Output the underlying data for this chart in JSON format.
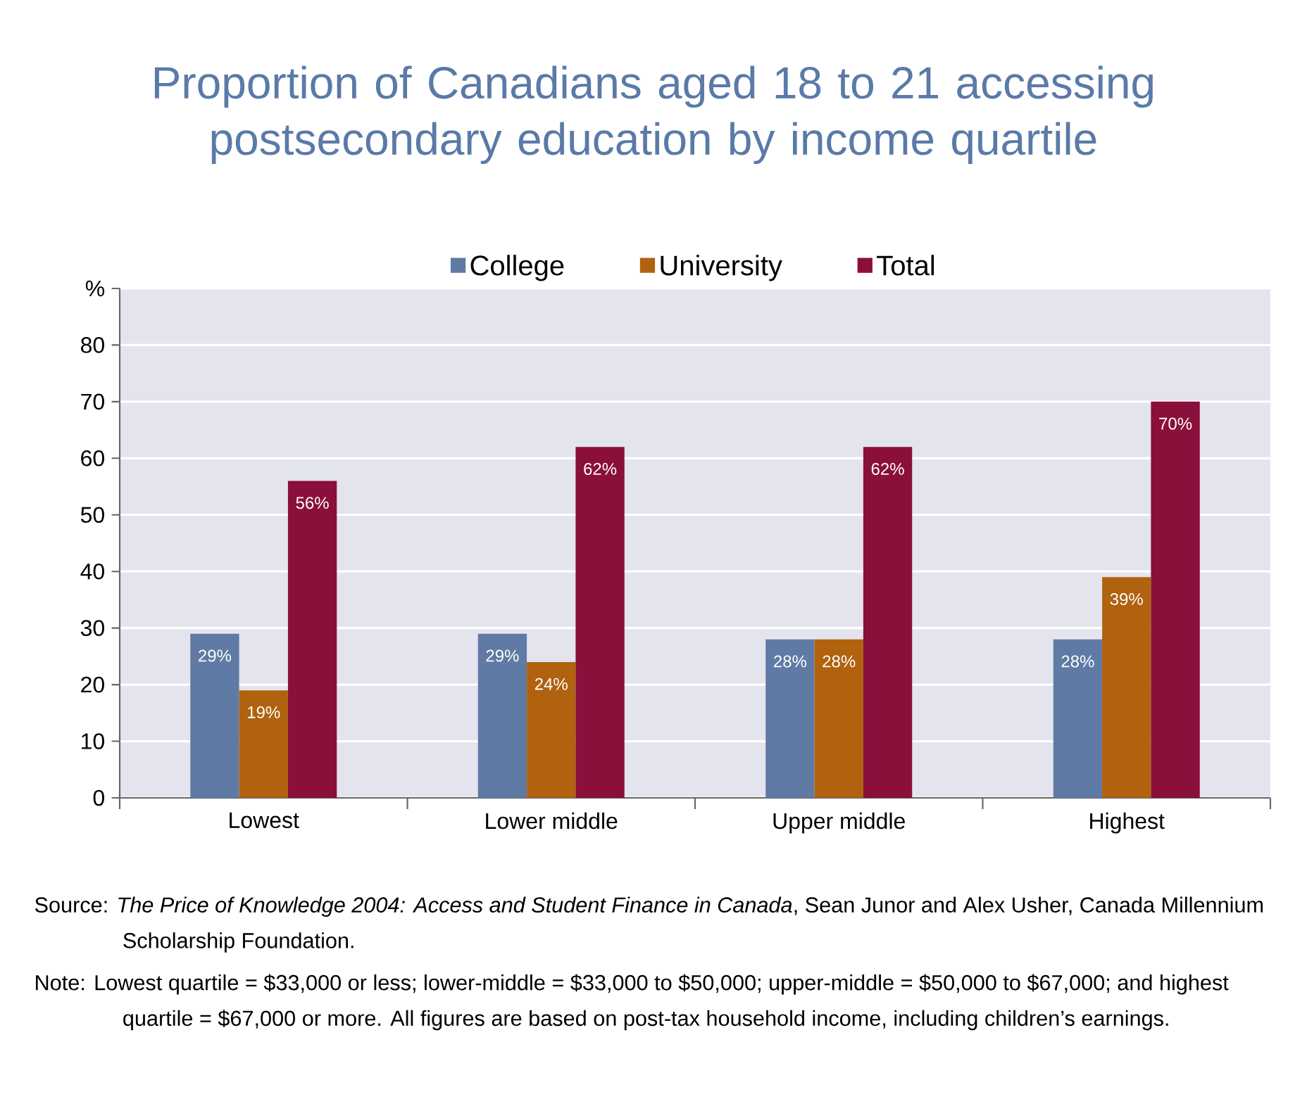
{
  "chart_data": {
    "type": "bar",
    "title": "Proportion of Canadians aged 18 to 21 accessing postsecondary education by income quartile",
    "categories": [
      "Lowest",
      "Lower middle",
      "Upper middle",
      "Highest"
    ],
    "series": [
      {
        "name": "College",
        "color": "#5f7aa4",
        "values": [
          29,
          29,
          28,
          28
        ],
        "value_labels": [
          "29%",
          "29%",
          "28%",
          "28%"
        ]
      },
      {
        "name": "University",
        "color": "#b0620f",
        "values": [
          19,
          24,
          28,
          39
        ],
        "value_labels": [
          "19%",
          "24%",
          "28%",
          "39%"
        ]
      },
      {
        "name": "Total",
        "color": "#8a0f3a",
        "values": [
          56,
          62,
          62,
          70
        ],
        "value_labels": [
          "56%",
          "62%",
          "62%",
          "70%"
        ]
      }
    ],
    "ylim": [
      0,
      90
    ],
    "yticks": [
      0,
      10,
      20,
      30,
      40,
      50,
      60,
      70,
      80,
      {
        "value": 90,
        "label": "%"
      }
    ],
    "grid": "y",
    "legend": "top",
    "annotations": [
      "Source: *The Price of Knowledge 2004: Access and Student Finance in Canada*, Sean Junor and Alex Usher, Canada Millennium Scholarship Foundation.",
      "Note: Lowest quartile = $33,000 or less; lower-middle = $33,000 to $50,000; upper-middle = $50,000 to $67,000; and highest quartile = $67,000 or more. All figures are based on post-tax household income, including children’s earnings."
    ]
  }
}
